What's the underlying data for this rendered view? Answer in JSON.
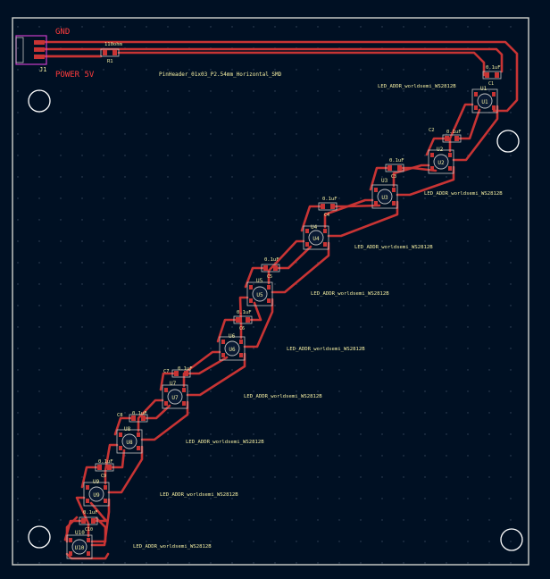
{
  "nets": {
    "gnd": "GND",
    "power": "POWER 5V"
  },
  "connector": {
    "ref": "J1",
    "value": "PinHeader_01x03_P2.54mm_Horizontal_SMD"
  },
  "resistor": {
    "ref": "R1",
    "value": "110ohm"
  },
  "leds": [
    {
      "ref": "U1",
      "label": "LED_ADDR_worldsemi_WS2812B",
      "cap_ref": "C1",
      "cap_value": "0.1uF"
    },
    {
      "ref": "U2",
      "label": "",
      "cap_ref": "C2",
      "cap_value": "0.1uF"
    },
    {
      "ref": "U3",
      "label": "LED_ADDR_worldsemi_WS2812B",
      "cap_ref": "C3",
      "cap_value": "0.1uF"
    },
    {
      "ref": "U4",
      "label": "LED_ADDR_worldsemi_WS2812B",
      "cap_ref": "C4",
      "cap_value": "0.1uF"
    },
    {
      "ref": "U5",
      "label": "LED_ADDR_worldsemi_WS2812B",
      "cap_ref": "C5",
      "cap_value": "0.1uF"
    },
    {
      "ref": "U6",
      "label": "LED_ADDR_worldsemi_WS2812B",
      "cap_ref": "C6",
      "cap_value": "0.1uF"
    },
    {
      "ref": "U7",
      "label": "LED_ADDR_worldsemi_WS2812B",
      "cap_ref": "C7",
      "cap_value": "0.1uF"
    },
    {
      "ref": "U8",
      "label": "LED_ADDR_worldsemi_WS2812B",
      "cap_ref": "C8",
      "cap_value": "0.1uF"
    },
    {
      "ref": "U9",
      "label": "LED_ADDR_worldsemi_WS2812B",
      "cap_ref": "C9",
      "cap_value": "0.1uF"
    },
    {
      "ref": "U10",
      "label": "LED_ADDR_worldsemi_WS2812B",
      "cap_ref": "C10",
      "cap_value": "0.1uF"
    }
  ],
  "colors": {
    "background": "#001023",
    "board_edge": "#d0d2cd",
    "copper_trace": "#c83434",
    "silkscreen": "#f2eda1",
    "net_label": "#ff3c3c",
    "pad": "#c83434",
    "courtyard": "#c2c2c2",
    "grid_dot": "#3a4a60",
    "connector_outline": "#c83cc8"
  },
  "icons": [
    "mounting-hole-icon"
  ]
}
